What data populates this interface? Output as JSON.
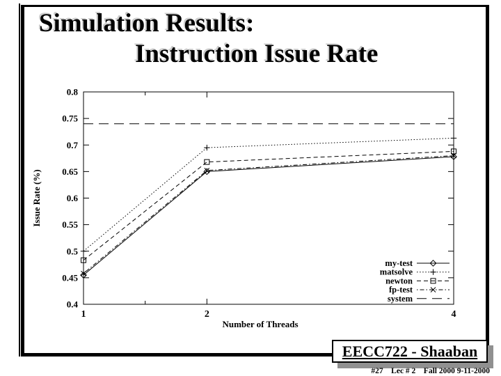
{
  "slide": {
    "title_line1": "Simulation Results:",
    "title_line2": "Instruction Issue Rate"
  },
  "footer": {
    "course_label": "EECC722 - Shaaban",
    "sub_label": "#27    Lec # 2    Fall 2000 9-11-2000"
  },
  "colors": {
    "ink": "#000000",
    "box_shadow_gray": "#909090",
    "title_shadow_gray": "#cccccc"
  },
  "chart_data": {
    "type": "line",
    "title": "",
    "xlabel": "Number of Threads",
    "ylabel": "Issue Rate (%)",
    "xlim": [
      1,
      4
    ],
    "ylim": [
      0.4,
      0.8
    ],
    "grid": false,
    "legend_position": "bottom-right",
    "x": [
      1,
      2,
      4
    ],
    "x_ticks": [
      {
        "value": 1,
        "label": "1"
      },
      {
        "value": 1.5,
        "label": ""
      },
      {
        "value": 2,
        "label": "2"
      },
      {
        "value": 4,
        "label": "4"
      }
    ],
    "y_ticks": [
      {
        "value": 0.4,
        "label": "0.4"
      },
      {
        "value": 0.45,
        "label": "0.45"
      },
      {
        "value": 0.5,
        "label": "0.5"
      },
      {
        "value": 0.55,
        "label": "0.55"
      },
      {
        "value": 0.6,
        "label": "0.6"
      },
      {
        "value": 0.65,
        "label": "0.65"
      },
      {
        "value": 0.7,
        "label": "0.7"
      },
      {
        "value": 0.75,
        "label": "0.75"
      },
      {
        "value": 0.8,
        "label": "0.8"
      }
    ],
    "series": [
      {
        "name": "my-test",
        "values": [
          0.455,
          0.65,
          0.678
        ],
        "line": "solid",
        "marker": "diamond"
      },
      {
        "name": "matsolve",
        "values": [
          0.5,
          0.695,
          0.713
        ],
        "line": "dotted",
        "marker": "plus"
      },
      {
        "name": "newton",
        "values": [
          0.483,
          0.668,
          0.688
        ],
        "line": "dashed",
        "marker": "square"
      },
      {
        "name": "fp-test",
        "values": [
          0.458,
          0.652,
          0.68
        ],
        "line": "dashdot",
        "marker": "x"
      },
      {
        "name": "system",
        "values": [
          0.74,
          0.74,
          0.74
        ],
        "line": "longdash",
        "marker": "none"
      }
    ]
  }
}
